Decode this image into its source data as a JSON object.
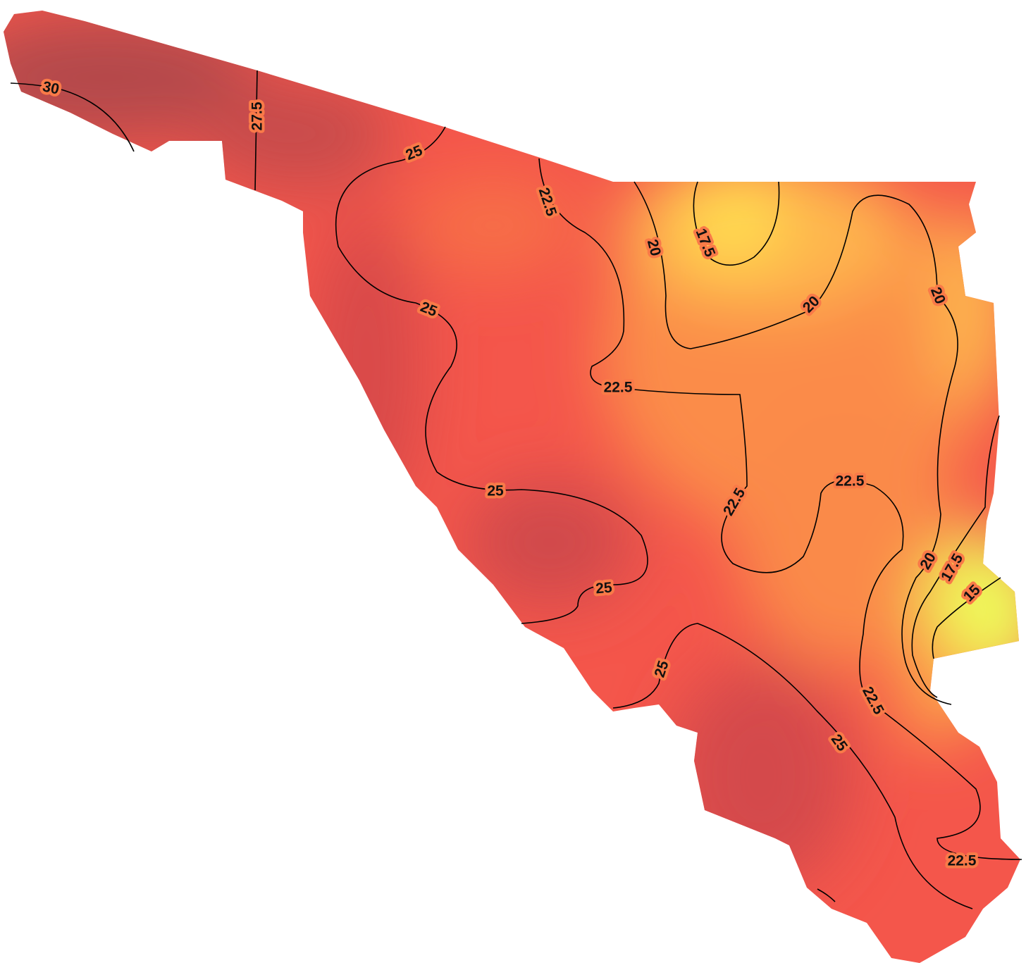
{
  "map": {
    "contour_labels": [
      "30",
      "27.5",
      "25",
      "22.5",
      "20",
      "17.5",
      "20",
      "20",
      "25",
      "22.5",
      "25",
      "22.5",
      "22.5",
      "25",
      "25",
      "20",
      "17.5",
      "15",
      "22.5",
      "25",
      "22.5"
    ]
  }
}
